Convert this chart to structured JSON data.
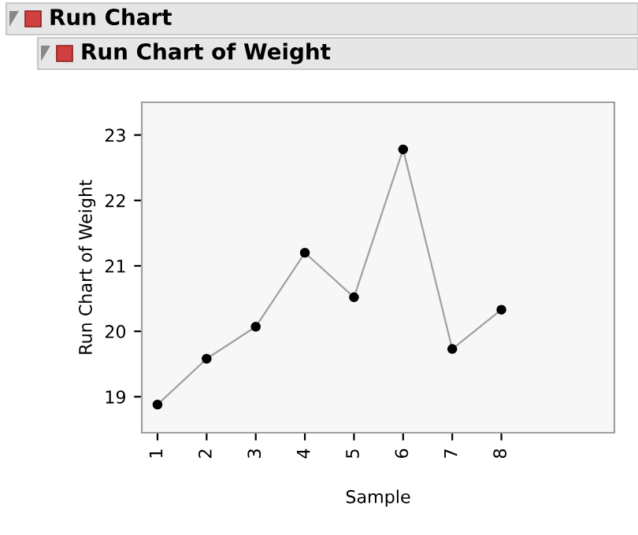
{
  "chart_data": {
    "type": "line",
    "title": "Run Chart",
    "subtitle": "Run Chart of Weight",
    "xlabel": "Sample",
    "ylabel": "Run Chart of Weight",
    "x": [
      1,
      2,
      3,
      4,
      5,
      6,
      7,
      8
    ],
    "series": [
      {
        "color": "#a0a0a0",
        "values": [
          18.88,
          19.58,
          20.07,
          21.2,
          20.52,
          22.78,
          19.73,
          20.33
        ]
      }
    ],
    "marker": "circle",
    "xlim": [
      0.68,
      10.3
    ],
    "xticks": [
      1,
      2,
      3,
      4,
      5,
      6,
      7,
      8
    ],
    "ylim": [
      18.45,
      23.5
    ],
    "yticks": [
      19,
      20,
      21,
      22,
      23
    ],
    "grid": false,
    "legend": false
  }
}
